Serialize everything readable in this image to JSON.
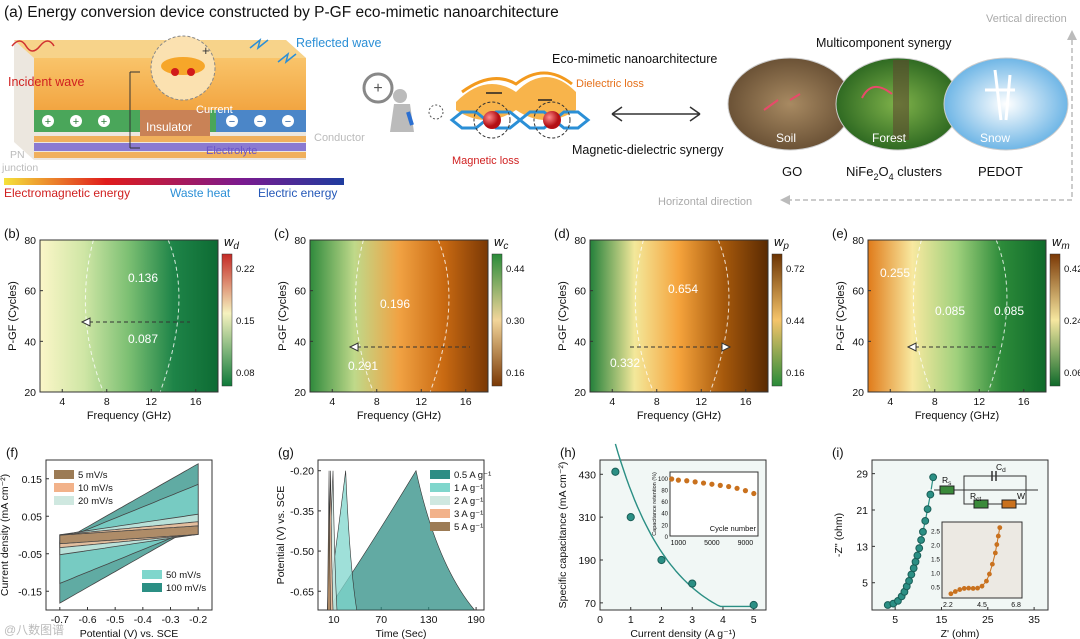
{
  "title": "(a) Energy conversion device constructed by P-GF eco-mimetic nanoarchitecture",
  "panel_a": {
    "incident_wave": "Incident wave",
    "reflected_wave": "Reflected wave",
    "current": "Current",
    "insulator": "Insulator",
    "electrolyte": "Electrolyte",
    "conductor": "Conductor",
    "pn_junction": [
      "PN",
      "junction"
    ],
    "em_energy": "Electromagnetic energy",
    "waste_heat": "Waste heat",
    "electric_energy": "Electric energy",
    "eco_title": "Eco-mimetic nanoarchitecture",
    "dielectric_loss": "Dielectric loss",
    "magnetic_loss": "Magnetic loss",
    "md_synergy": "Magnetic-dielectric synergy",
    "multi_synergy": "Multicomponent synergy",
    "soil": "Soil",
    "forest": "Forest",
    "snow": "Snow",
    "go": "GO",
    "nife": "NiFe",
    "nife_sub2": "2",
    "nife_o": "O",
    "nife_sub4": "4",
    "nife_rest": " clusters",
    "pedot": "PEDOT",
    "vertical": "Vertical direction",
    "horizontal": "Horizontal direction"
  },
  "heatmaps": [
    {
      "label": "(b)",
      "wsym": "w",
      "wsub": "d",
      "ylabel": "P-GF (Cycles)",
      "xlabel": "Frequency (GHz)",
      "xticks": [
        "4",
        "8",
        "12",
        "16"
      ],
      "yticks": [
        "20",
        "40",
        "60",
        "80"
      ],
      "cbar": [
        "0.22",
        "0.15",
        "0.08"
      ],
      "annot": [
        "0.136",
        "0.087"
      ],
      "colors": [
        "#fbf6c8",
        "#cfe6a5",
        "#7bbf72",
        "#1e8448",
        "#0d6b33"
      ]
    },
    {
      "label": "(c)",
      "wsym": "w",
      "wsub": "c",
      "ylabel": "P-GF (Cycles)",
      "xlabel": "Frequency (GHz)",
      "xticks": [
        "4",
        "8",
        "12",
        "16"
      ],
      "yticks": [
        "20",
        "40",
        "60",
        "80"
      ],
      "cbar": [
        "0.44",
        "0.30",
        "0.16"
      ],
      "annot": [
        "0.196",
        "0.291"
      ],
      "colors": [
        "#2f8a3c",
        "#bfd98a",
        "#f1a243",
        "#c96a12",
        "#7a3805"
      ]
    },
    {
      "label": "(d)",
      "wsym": "w",
      "wsub": "p",
      "ylabel": "P-GF (Cycles)",
      "xlabel": "Frequency (GHz)",
      "xticks": [
        "4",
        "8",
        "12",
        "16"
      ],
      "yticks": [
        "20",
        "40",
        "60",
        "80"
      ],
      "cbar": [
        "0.72",
        "0.44",
        "0.16"
      ],
      "annot": [
        "0.654",
        "0.332"
      ],
      "colors": [
        "#23803a",
        "#f3e89a",
        "#f5a33c",
        "#a6590c",
        "#5a2a02"
      ]
    },
    {
      "label": "(e)",
      "wsym": "w",
      "wsub": "m",
      "ylabel": "P-GF (Cycles)",
      "xlabel": "Frequency (GHz)",
      "xticks": [
        "4",
        "8",
        "12",
        "16"
      ],
      "yticks": [
        "20",
        "40",
        "60",
        "80"
      ],
      "cbar": [
        "0.42",
        "0.24",
        "0.06"
      ],
      "annot": [
        "0.255",
        "0.085",
        "0.085"
      ],
      "colors": [
        "#e07b1a",
        "#f8e9a0",
        "#9fd07c",
        "#2d8b3a",
        "#0f6a2a"
      ]
    }
  ],
  "chart_data": [
    {
      "type": "line",
      "panel": "(f)",
      "title": "",
      "xlabel": "Potential (V) vs. SCE",
      "ylabel": "Current density (mA cm⁻²)",
      "xlim": [
        -0.75,
        -0.15
      ],
      "ylim": [
        -0.2,
        0.2
      ],
      "xticks": [
        "-0.7",
        "-0.6",
        "-0.5",
        "-0.4",
        "-0.3",
        "-0.2"
      ],
      "yticks": [
        "0.15",
        "0.05",
        "-0.05",
        "-0.15"
      ],
      "series": [
        {
          "name": "5 mV/s",
          "color": "#9c7b55",
          "amp": 0.012,
          "slope": 0.05
        },
        {
          "name": "10 mV/s",
          "color": "#f2b28a",
          "amp": 0.018,
          "slope": 0.07
        },
        {
          "name": "20 mV/s",
          "color": "#cfe8e0",
          "amp": 0.028,
          "slope": 0.11
        },
        {
          "name": "50 mV/s",
          "color": "#7fd6cc",
          "amp": 0.06,
          "slope": 0.3
        },
        {
          "name": "100 mV/s",
          "color": "#2b8f84",
          "amp": 0.085,
          "slope": 0.42
        }
      ]
    },
    {
      "type": "line",
      "panel": "(g)",
      "title": "",
      "xlabel": "Time (Sec)",
      "ylabel": "Potential (V) vs. SCE",
      "xlim": [
        -10,
        200
      ],
      "ylim": [
        -0.72,
        -0.16
      ],
      "xticks": [
        "10",
        "70",
        "130",
        "190"
      ],
      "yticks": [
        "-0.20",
        "-0.35",
        "-0.50",
        "-0.65"
      ],
      "series": [
        {
          "name": "0.5 A g⁻¹",
          "color": "#2e8d84",
          "t_peak": 112,
          "t_end": 186
        },
        {
          "name": "1 A g⁻¹",
          "color": "#7fd6cc",
          "t_peak": 23,
          "t_end": 37
        },
        {
          "name": "2 A g⁻¹",
          "color": "#cfe8e0",
          "t_peak": 7,
          "t_end": 12
        },
        {
          "name": "3 A g⁻¹",
          "color": "#f2b28a",
          "t_peak": 4,
          "t_end": 7
        },
        {
          "name": "5 A g⁻¹",
          "color": "#9c7b55",
          "t_peak": 2,
          "t_end": 4
        }
      ]
    },
    {
      "type": "scatter",
      "panel": "(h)",
      "title": "",
      "xlabel": "Current density (A g⁻¹)",
      "ylabel": "Specific capacitance (mA cm⁻²)",
      "xlim": [
        0,
        5.4
      ],
      "ylim": [
        50,
        470
      ],
      "xticks": [
        "0",
        "1",
        "2",
        "3",
        "4",
        "5"
      ],
      "yticks": [
        "430",
        "310",
        "190",
        "70"
      ],
      "x": [
        0.5,
        1,
        2,
        3,
        5
      ],
      "values": [
        437,
        310,
        190,
        124,
        64
      ],
      "inset": {
        "xlabel": "Cycle number",
        "ylabel": "Capacitance retention (%)",
        "xticks": [
          "1000",
          "5000",
          "9000"
        ],
        "yticks": [
          "100",
          "80",
          "60",
          "40",
          "20",
          "0"
        ],
        "x": [
          200,
          1000,
          2000,
          3000,
          4000,
          5000,
          6000,
          7000,
          8000,
          9000,
          10000
        ],
        "values": [
          98,
          96,
          95,
          93,
          91,
          89,
          87,
          85,
          82,
          78,
          73
        ]
      }
    },
    {
      "type": "scatter",
      "panel": "(i)",
      "title": "",
      "xlabel": "Z' (ohm)",
      "ylabel": "-Z'' (ohm)",
      "xlim": [
        0,
        38
      ],
      "ylim": [
        -1,
        32
      ],
      "xticks": [
        "5",
        "15",
        "25",
        "35"
      ],
      "yticks": [
        "29",
        "21",
        "13",
        "5"
      ],
      "x": [
        3.4,
        4.6,
        5.6,
        6.4,
        7.0,
        7.5,
        8.0,
        8.5,
        9.0,
        9.4,
        9.8,
        10.2,
        10.6,
        11,
        11.5,
        12,
        12.6,
        13.2
      ],
      "values": [
        0.1,
        0.4,
        1.0,
        2.0,
        3.0,
        4.2,
        5.4,
        6.8,
        8.2,
        9.6,
        11,
        12.6,
        14.4,
        16.2,
        18.6,
        21.2,
        24.4,
        28.2
      ],
      "inset": {
        "xticks": [
          "2.2",
          "4.5",
          "6.8"
        ],
        "yticks": [
          "2.5",
          "2.0",
          "1.5",
          "1.0",
          "0.5"
        ],
        "x": [
          2.4,
          2.7,
          3.0,
          3.3,
          3.6,
          3.9,
          4.2,
          4.5,
          4.8,
          5.0,
          5.2,
          5.4,
          5.5,
          5.6,
          5.7
        ],
        "values": [
          0.25,
          0.33,
          0.4,
          0.44,
          0.45,
          0.44,
          0.45,
          0.52,
          0.7,
          0.95,
          1.3,
          1.7,
          2.0,
          2.3,
          2.6
        ]
      },
      "circuit": {
        "rs": "R",
        "rs_sub": "s",
        "cd": "C",
        "cd_sub": "d",
        "rct": "R",
        "rct_sub": "ct",
        "w": "W"
      }
    }
  ],
  "watermark": "@八数图谱"
}
